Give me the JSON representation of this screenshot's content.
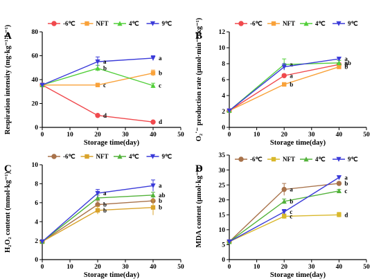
{
  "chart_data": [
    {
      "panel": "A",
      "type": "line",
      "xlabel": "Storage time(day)",
      "ylabel": "Respiration intensity (mg·kg⁻¹·h⁻¹)",
      "xlim": [
        0,
        50
      ],
      "ylim": [
        0,
        80
      ],
      "xticks": [
        "0",
        "10",
        "20",
        "30",
        "40",
        "50"
      ],
      "yticks": [
        "0",
        "20",
        "40",
        "60",
        "80"
      ],
      "legend": "top",
      "series": [
        {
          "name": "-6℃",
          "color": "#f0494d",
          "marker": "circle",
          "x": [
            0,
            20,
            40
          ],
          "y": [
            35.5,
            10,
            4.5
          ],
          "err": [
            0.5,
            0.8,
            0.5
          ],
          "sig": [
            "",
            "d",
            "d"
          ]
        },
        {
          "name": "NFT",
          "color": "#f9a23a",
          "marker": "square",
          "x": [
            0,
            20,
            40
          ],
          "y": [
            35.5,
            35.5,
            45.5
          ],
          "err": [
            0.5,
            1.0,
            2.5
          ],
          "sig": [
            "",
            "c",
            "b"
          ]
        },
        {
          "name": "4℃",
          "color": "#52cf3a",
          "marker": "triangle-up",
          "x": [
            0,
            20,
            40
          ],
          "y": [
            35.5,
            49.5,
            35
          ],
          "err": [
            0.5,
            2.5,
            2.0
          ],
          "sig": [
            "",
            "b",
            "c"
          ]
        },
        {
          "name": "9℃",
          "color": "#3b3bd9",
          "marker": "triangle-down",
          "x": [
            0,
            20,
            40
          ],
          "y": [
            35.5,
            55,
            58
          ],
          "err": [
            0.5,
            4.0,
            2.0
          ],
          "sig": [
            "",
            "a",
            "a"
          ]
        }
      ]
    },
    {
      "panel": "B",
      "type": "line",
      "xlabel": "Storage time(day)",
      "ylabel": "O₂˙⁻ production rate (μmol·min⁻¹·kg⁻¹)",
      "xlim": [
        0,
        50
      ],
      "ylim": [
        0,
        12
      ],
      "xticks": [
        "0",
        "10",
        "20",
        "30",
        "40",
        "50"
      ],
      "yticks": [
        "0",
        "2",
        "4",
        "6",
        "8",
        "10",
        "12"
      ],
      "legend": "top",
      "series": [
        {
          "name": "-6℃",
          "color": "#f0494d",
          "marker": "circle",
          "x": [
            0,
            20,
            40
          ],
          "y": [
            2.1,
            6.5,
            7.9
          ],
          "err": [
            0.1,
            0.2,
            0.2
          ],
          "sig": [
            "",
            "a",
            "b"
          ]
        },
        {
          "name": "NFT",
          "color": "#f9a23a",
          "marker": "square",
          "x": [
            0,
            20,
            40
          ],
          "y": [
            2.1,
            5.4,
            7.6
          ],
          "err": [
            0.1,
            0.2,
            0.2
          ],
          "sig": [
            "",
            "b",
            "b"
          ]
        },
        {
          "name": "4℃",
          "color": "#52cf3a",
          "marker": "triangle-up",
          "x": [
            0,
            20,
            40
          ],
          "y": [
            2.1,
            7.9,
            8.1
          ],
          "err": [
            0.1,
            0.7,
            0.3
          ],
          "sig": [
            "",
            "a",
            "ab"
          ]
        },
        {
          "name": "9℃",
          "color": "#3b3bd9",
          "marker": "triangle-down",
          "x": [
            0,
            20,
            40
          ],
          "y": [
            2.1,
            7.6,
            8.6
          ],
          "err": [
            0.1,
            0.4,
            0.2
          ],
          "sig": [
            "",
            "",
            "a"
          ]
        }
      ]
    },
    {
      "panel": "C",
      "type": "line",
      "xlabel": "Storage time(day)",
      "ylabel": "H₂O₂ content (mmol·kg⁻¹)",
      "xlim": [
        0,
        50
      ],
      "ylim": [
        0,
        10
      ],
      "xticks": [
        "0",
        "10",
        "20",
        "30",
        "40",
        "50"
      ],
      "yticks": [
        "0",
        "2",
        "4",
        "6",
        "8",
        "10"
      ],
      "legend": "top",
      "series": [
        {
          "name": "-6℃",
          "color": "#a8724a",
          "marker": "circle",
          "x": [
            0,
            20,
            40
          ],
          "y": [
            1.9,
            5.8,
            6.2
          ],
          "err": [
            0.1,
            0.4,
            0.4
          ],
          "sig": [
            "",
            "b",
            "b"
          ]
        },
        {
          "name": "NFT",
          "color": "#d9a32b",
          "marker": "square",
          "x": [
            0,
            20,
            40
          ],
          "y": [
            1.9,
            5.2,
            5.5
          ],
          "err": [
            0.1,
            0.4,
            0.8
          ],
          "sig": [
            "",
            "b",
            "b"
          ]
        },
        {
          "name": "4℃",
          "color": "#52b23a",
          "marker": "triangle-up",
          "x": [
            0,
            20,
            40
          ],
          "y": [
            1.9,
            6.5,
            6.8
          ],
          "err": [
            0.1,
            0.3,
            0.3
          ],
          "sig": [
            "",
            "",
            "ab"
          ]
        },
        {
          "name": "9℃",
          "color": "#3b3bd9",
          "marker": "triangle-down",
          "x": [
            0,
            20,
            40
          ],
          "y": [
            1.9,
            7.0,
            7.8
          ],
          "err": [
            0.1,
            0.4,
            0.6
          ],
          "sig": [
            "",
            "a",
            "a"
          ]
        }
      ]
    },
    {
      "panel": "D",
      "type": "line",
      "xlabel": "Storage time(day)",
      "ylabel": "MDA content (μmol·kg⁻¹)",
      "xlim": [
        0,
        50
      ],
      "ylim": [
        0,
        35
      ],
      "xticks": [
        "0",
        "10",
        "20",
        "30",
        "40",
        "50"
      ],
      "yticks": [
        "0",
        "5",
        "10",
        "15",
        "20",
        "25",
        "30",
        "35"
      ],
      "legend": "top",
      "series": [
        {
          "name": "-6℃",
          "color": "#a8724a",
          "marker": "circle",
          "x": [
            0,
            20,
            40
          ],
          "y": [
            6,
            23.5,
            25.5
          ],
          "err": [
            0.3,
            2.0,
            0.5
          ],
          "sig": [
            "",
            "a",
            "b"
          ]
        },
        {
          "name": "NFT",
          "color": "#d9b82b",
          "marker": "square",
          "x": [
            0,
            20,
            40
          ],
          "y": [
            6,
            14.5,
            15
          ],
          "err": [
            0.3,
            0.8,
            0.8
          ],
          "sig": [
            "",
            "c",
            "d"
          ]
        },
        {
          "name": "4℃",
          "color": "#52b23a",
          "marker": "triangle-up",
          "x": [
            0,
            20,
            40
          ],
          "y": [
            6,
            19.5,
            23
          ],
          "err": [
            0.3,
            0.8,
            0.5
          ],
          "sig": [
            "",
            "b",
            "c"
          ]
        },
        {
          "name": "9℃",
          "color": "#3b3bd9",
          "marker": "triangle-down",
          "x": [
            0,
            20,
            40
          ],
          "y": [
            6,
            16,
            27.5
          ],
          "err": [
            0.3,
            0.8,
            0.5
          ],
          "sig": [
            "",
            "c",
            "a"
          ]
        }
      ]
    }
  ]
}
